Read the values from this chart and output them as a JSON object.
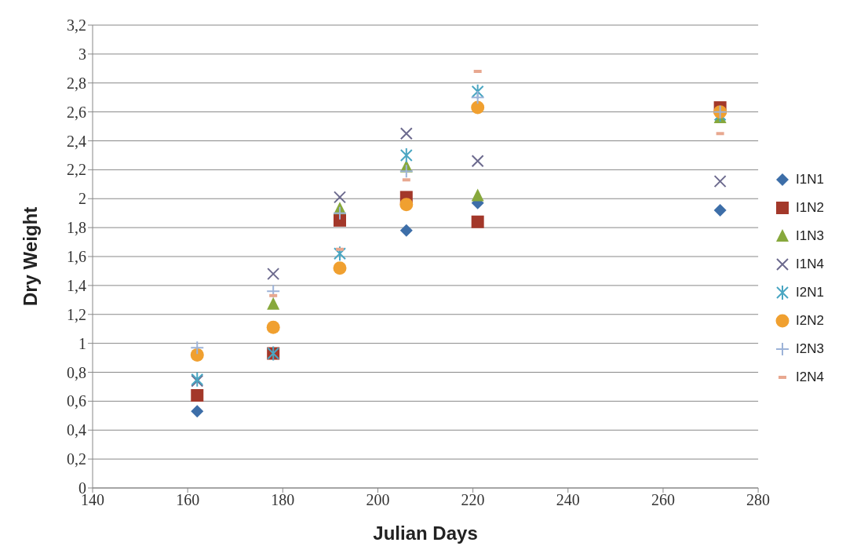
{
  "chart_data": {
    "type": "scatter",
    "xlabel": "Julian Days",
    "ylabel": "Dry Weight",
    "x": [
      162,
      178,
      192,
      206,
      221,
      272
    ],
    "series": [
      {
        "name": "I1N1",
        "color": "#3d6ea8",
        "marker": "diamond",
        "values": [
          0.53,
          null,
          null,
          1.78,
          1.97,
          1.92
        ]
      },
      {
        "name": "I1N2",
        "color": "#a3382a",
        "marker": "square",
        "values": [
          0.64,
          0.93,
          1.85,
          2.01,
          1.84,
          2.63
        ]
      },
      {
        "name": "I1N3",
        "color": "#87a83c",
        "marker": "triangle",
        "values": [
          null,
          1.27,
          1.93,
          2.22,
          2.02,
          2.56
        ]
      },
      {
        "name": "I1N4",
        "color": "#6c6a8e",
        "marker": "x",
        "values": [
          0.74,
          1.48,
          2.01,
          2.45,
          2.26,
          2.12
        ]
      },
      {
        "name": "I2N1",
        "color": "#4aa6c2",
        "marker": "cross",
        "values": [
          0.75,
          0.93,
          1.62,
          2.3,
          2.74,
          2.58
        ]
      },
      {
        "name": "I2N2",
        "color": "#f0a030",
        "marker": "circle",
        "values": [
          0.92,
          1.11,
          1.52,
          1.96,
          2.63,
          2.6
        ]
      },
      {
        "name": "I2N3",
        "color": "#9db3d8",
        "marker": "plus",
        "values": [
          0.97,
          1.36,
          1.9,
          2.19,
          2.7,
          2.6
        ]
      },
      {
        "name": "I2N4",
        "color": "#e8a890",
        "values": [
          null,
          1.33,
          1.65,
          2.13,
          2.88,
          2.45
        ]
      }
    ],
    "xlim": [
      140,
      280
    ],
    "xticks": [
      140,
      160,
      180,
      200,
      220,
      240,
      260,
      280
    ],
    "ylim": [
      0,
      3.2
    ],
    "yticks": [
      0,
      {
        "value": 0.2,
        "label": "0,2"
      },
      {
        "value": 0.4,
        "label": "0,4"
      },
      {
        "value": 0.6,
        "label": "0,6"
      },
      {
        "value": 0.8,
        "label": "0,8"
      },
      1,
      {
        "value": 1.2,
        "label": "1,2"
      },
      {
        "value": 1.4,
        "label": "1,4"
      },
      {
        "value": 1.6,
        "label": "1,6"
      },
      {
        "value": 1.8,
        "label": "1,8"
      },
      2,
      {
        "value": 2.2,
        "label": "2,2"
      },
      {
        "value": 2.4,
        "label": "2,4"
      },
      {
        "value": 2.6,
        "label": "2,6"
      },
      {
        "value": 2.8,
        "label": "2,8"
      },
      3,
      {
        "value": 3.2,
        "label": "3,2"
      }
    ],
    "grid": "y",
    "legend": "right"
  }
}
